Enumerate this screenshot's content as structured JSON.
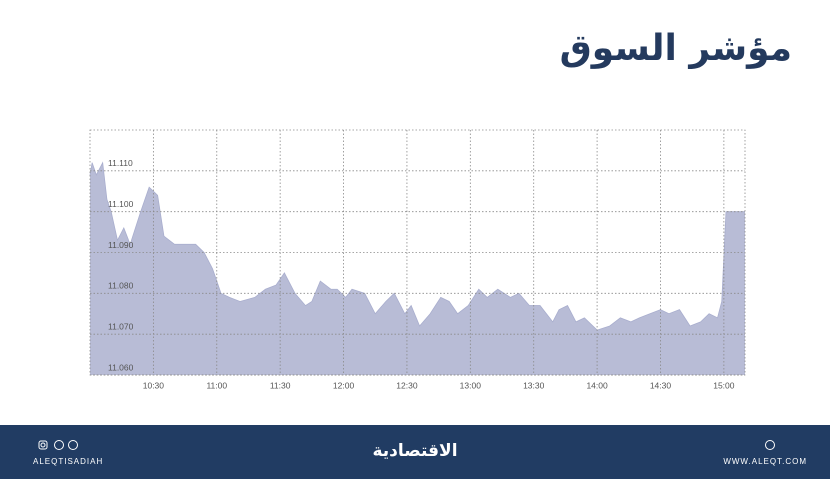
{
  "header": {
    "title": "مؤشر السوق"
  },
  "chart_data": {
    "type": "area",
    "color": "#b8bcd6",
    "x": [
      "10:00",
      "10:01",
      "10:03",
      "10:06",
      "10:08",
      "10:10",
      "10:13",
      "10:16",
      "10:19",
      "10:24",
      "10:28",
      "10:32",
      "10:35",
      "10:40",
      "10:45",
      "10:50",
      "10:54",
      "10:58",
      "11:02",
      "11:06",
      "11:11",
      "11:18",
      "11:23",
      "11:28",
      "11:32",
      "11:37",
      "11:42",
      "11:45",
      "11:49",
      "11:54",
      "11:57",
      "12:01",
      "12:04",
      "12:10",
      "12:15",
      "12:20",
      "12:24",
      "12:29",
      "12:32",
      "12:36",
      "12:41",
      "12:46",
      "12:50",
      "12:54",
      "12:59",
      "13:04",
      "13:08",
      "13:13",
      "13:19",
      "13:23",
      "13:28",
      "13:33",
      "13:39",
      "13:42",
      "13:46",
      "13:50",
      "13:54",
      "14:00",
      "14:06",
      "14:11",
      "14:16",
      "14:20",
      "14:25",
      "14:30",
      "14:34",
      "14:39",
      "14:44",
      "14:49",
      "14:53",
      "14:57",
      "14:59",
      "15:01",
      "15:10"
    ],
    "values": [
      11.109,
      11.112,
      11.109,
      11.112,
      11.103,
      11.1,
      11.093,
      11.096,
      11.092,
      11.1,
      11.106,
      11.104,
      11.094,
      11.092,
      11.092,
      11.092,
      11.09,
      11.086,
      11.08,
      11.079,
      11.078,
      11.079,
      11.081,
      11.082,
      11.085,
      11.08,
      11.077,
      11.078,
      11.083,
      11.081,
      11.081,
      11.079,
      11.081,
      11.08,
      11.075,
      11.078,
      11.08,
      11.075,
      11.077,
      11.072,
      11.075,
      11.079,
      11.078,
      11.075,
      11.077,
      11.081,
      11.079,
      11.081,
      11.079,
      11.08,
      11.077,
      11.077,
      11.073,
      11.076,
      11.077,
      11.073,
      11.074,
      11.071,
      11.072,
      11.074,
      11.073,
      11.074,
      11.075,
      11.076,
      11.075,
      11.076,
      11.072,
      11.073,
      11.075,
      11.074,
      11.078,
      11.1,
      11.1
    ],
    "xlim": [
      "10:00",
      "15:10"
    ],
    "xticks": [
      "10:30",
      "11:00",
      "11:30",
      "12:00",
      "12:30",
      "13:00",
      "13:30",
      "14:00",
      "14:30",
      "15:00"
    ],
    "ylim": [
      11.06,
      11.12
    ],
    "yticks": [
      {
        "value": 11.06,
        "label": "11.060"
      },
      {
        "value": 11.07,
        "label": "11.070"
      },
      {
        "value": 11.08,
        "label": "11.080"
      },
      {
        "value": 11.09,
        "label": "11.090"
      },
      {
        "value": 11.1,
        "label": "11.100"
      },
      {
        "value": 11.11,
        "label": "11.110"
      }
    ],
    "grid": true
  },
  "footer": {
    "social_handle": "ALEQTISADIAH",
    "logo": "الاقتصادية",
    "website": "WWW.ALEQT.COM"
  }
}
